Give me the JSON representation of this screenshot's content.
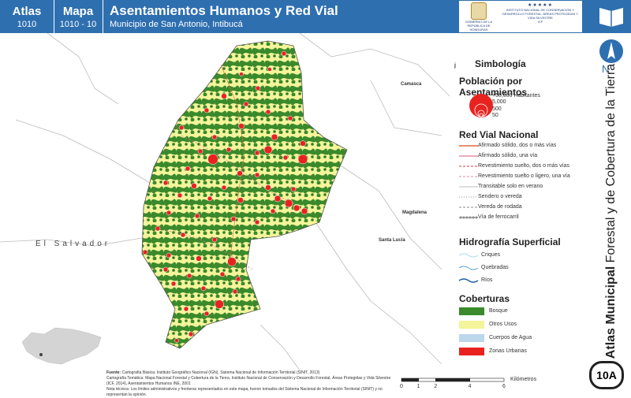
{
  "header": {
    "atlas_label": "Atlas",
    "atlas_code": "1010",
    "mapa_label": "Mapa",
    "mapa_code": "1010 - 10",
    "title": "Asentamientos Humanos y Red Vial",
    "subtitle": "Municipio de San Antonio, Intibucá",
    "logo_left_text": "GOBIERNO DE LA REPÚBLICA DE HONDURAS",
    "logo_right_text": "INSTITUTO NACIONAL DE CONSERVACIÓN Y DESARROLLO FORESTAL, ÁREAS PROTEGIDAS Y VIDA SILVESTRE",
    "logo_right_abbr": "ICF",
    "book_icon": "book-icon"
  },
  "side": {
    "vertical_title_bold": "Atlas Municipal",
    "vertical_title_rest": "Forestal y de Cobertura de la Tierra",
    "north_label": "N",
    "badge": "10A"
  },
  "map_labels": {
    "camasca": "Camasca",
    "magdalena": "Magdalena",
    "santa_lucia": "Santa Lucía",
    "el_salvador": "El Salvador",
    "j_mark": "j"
  },
  "legend": {
    "title": "Simbología",
    "population_title": "Población por Asentamientos",
    "population_items": [
      "+50,000 Habitantes",
      "5,000",
      "500",
      "50"
    ],
    "road_title": "Red Vial Nacional",
    "roads": [
      {
        "label": "Afirmado sólido, dos o más vías",
        "color": "#e06a3a",
        "style": "solid"
      },
      {
        "label": "Afirmado sólido, una vía",
        "color": "#e07a90",
        "style": "solid"
      },
      {
        "label": "Revestimiento suelto, dos o más vías",
        "color": "#d83a3a",
        "style": "dash"
      },
      {
        "label": "Revestimiento suelto o ligero, una vía",
        "color": "#e08aa0",
        "style": "dash"
      },
      {
        "label": "Transitable solo en verano",
        "color": "#bdbdbd",
        "style": "solid"
      },
      {
        "label": "Sendero o vereda",
        "color": "#9a9a9a",
        "style": "dot"
      },
      {
        "label": "Vereda de rodada",
        "color": "#888888",
        "style": "dash"
      },
      {
        "label": "Vía de ferrocarril",
        "color": "#555555",
        "style": "rail"
      }
    ],
    "hydro_title": "Hidrografía Superficial",
    "hydro": [
      {
        "label": "Criques",
        "color": "#a8d8ea"
      },
      {
        "label": "Quebradas",
        "color": "#5aa0c8"
      },
      {
        "label": "Ríos",
        "color": "#1f5fa8"
      }
    ],
    "cover_title": "Coberturas",
    "covers": [
      {
        "label": "Bosque",
        "color": "#3a8a2c"
      },
      {
        "label": "Otros Usos",
        "color": "#f4f49a"
      },
      {
        "label": "Cuerpos de Agua",
        "color": "#bcd6ea"
      },
      {
        "label": "Zonas Urbanas",
        "color": "#e8231f"
      }
    ]
  },
  "footer": {
    "fuente_label": "Fuente:",
    "line1": "Cartografía Básica: Instituto Geográfico Nacional (IGN), Sistema Nacional de Información Territorial (SINIT, 2013)",
    "line2": "Cartografía Temática: Mapa Nacional Forestal y Cobertura de la Tierra, Instituto Nacional de Conservación y Desarrollo Forestal, Áreas Protegidas y Vida Silvestre (ICF, 2014), Asentamientos Humanos INE, 2001",
    "nota": "Nota técnica: Los límites administrativos y fronteras representados en este mapa, fueron tomados del Sistema Nacional de Información Territorial (SINIT) y no representan la opinión."
  },
  "scale": {
    "ticks": [
      "0",
      "1",
      "2",
      "4",
      "6"
    ],
    "tick_km": [
      0,
      1,
      2,
      4,
      6
    ],
    "unit": "Kilómetros"
  },
  "colors": {
    "header_blue": "#2e6fb0",
    "forest": "#3a8a2c",
    "other_uses": "#f4f49a",
    "urban": "#e8231f"
  }
}
